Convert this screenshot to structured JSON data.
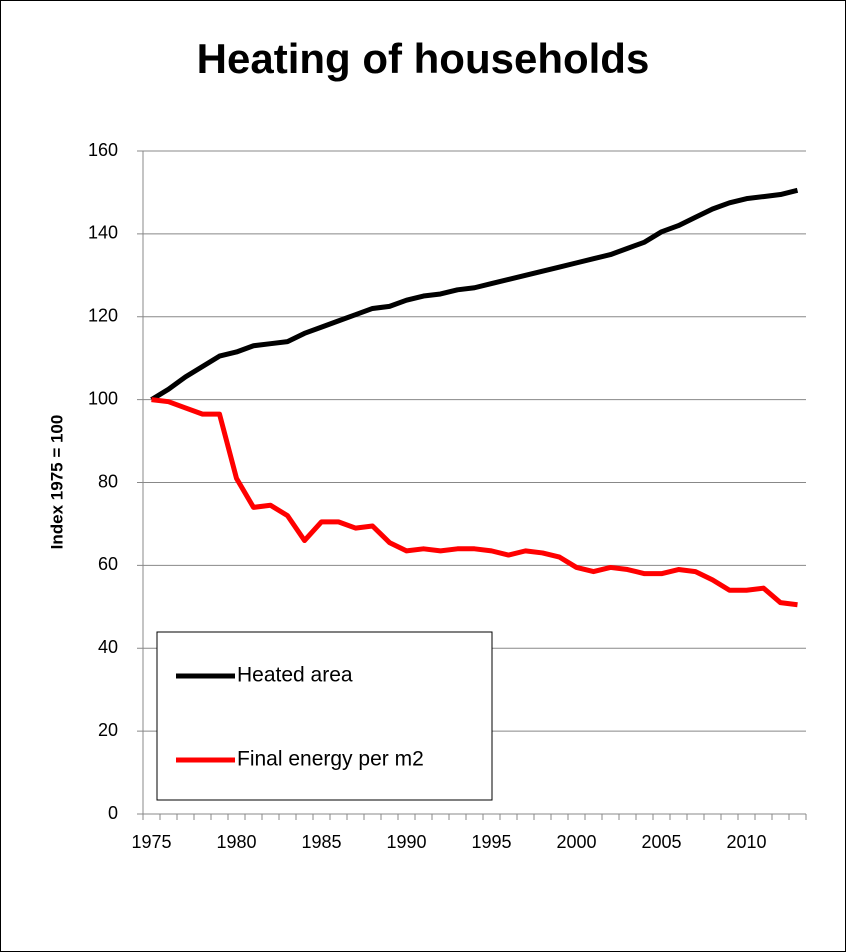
{
  "chart_data": {
    "type": "line",
    "title": "Heating of households",
    "y_label": "Index 1975 = 100",
    "x": [
      1975,
      1976,
      1977,
      1978,
      1979,
      1980,
      1981,
      1982,
      1983,
      1984,
      1985,
      1986,
      1987,
      1988,
      1989,
      1990,
      1991,
      1992,
      1993,
      1994,
      1995,
      1996,
      1997,
      1998,
      1999,
      2000,
      2001,
      2002,
      2003,
      2004,
      2005,
      2006,
      2007,
      2008,
      2009,
      2010,
      2011,
      2012,
      2013
    ],
    "series": [
      {
        "name": "Heated area",
        "color": "#000000",
        "values": [
          100,
          102.5,
          105.5,
          108,
          110.5,
          111.5,
          113,
          113.5,
          114,
          116,
          117.5,
          119,
          120.5,
          122,
          122.5,
          124,
          125,
          125.5,
          126.5,
          127,
          128,
          129,
          130,
          131,
          132,
          133,
          134,
          135,
          136.5,
          138,
          140.5,
          142,
          144,
          146,
          147.5,
          148.5,
          149,
          149.5,
          150.5
        ]
      },
      {
        "name": "Final energy per m2",
        "color": "#ff0000",
        "values": [
          100,
          99.5,
          98,
          96.5,
          96.5,
          81,
          74,
          74.5,
          72,
          66,
          70.5,
          70.5,
          69,
          69.5,
          65.5,
          63.5,
          64,
          63.5,
          64,
          64,
          63.5,
          62.5,
          63.5,
          63,
          62,
          59.5,
          58.5,
          59.5,
          59,
          58,
          58,
          59,
          58.5,
          56.5,
          54,
          54,
          54.5,
          51,
          50.5
        ]
      }
    ],
    "xlim": [
      1974.5,
      2013.5
    ],
    "xticks": [
      1975,
      1980,
      1985,
      1990,
      1995,
      2000,
      2005,
      2010
    ],
    "ylim": [
      0,
      160
    ],
    "yticks": [
      0,
      20,
      40,
      60,
      80,
      100,
      120,
      140,
      160
    ],
    "grid": true,
    "legend": "lower left"
  }
}
